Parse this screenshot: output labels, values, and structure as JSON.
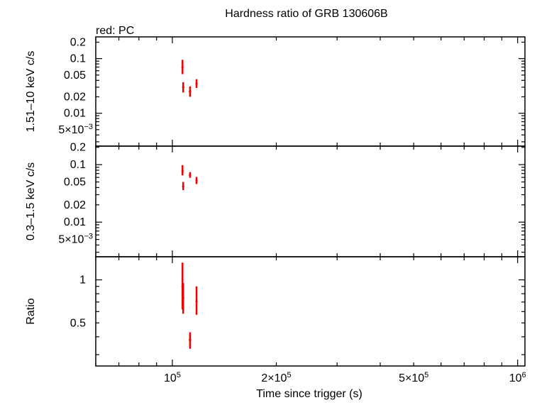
{
  "chart_data": {
    "type": "scatter",
    "title": "Hardness ratio of GRB 130606B",
    "subtitle": "red: PC",
    "xlabel": "Time since trigger (s)",
    "xscale": "log",
    "xlim": [
      60000,
      1050000
    ],
    "x_ticks": [
      {
        "value": 100000,
        "base": "10",
        "exp": "5",
        "prefix": ""
      },
      {
        "value": 200000,
        "base": "10",
        "exp": "5",
        "prefix": "2×"
      },
      {
        "value": 500000,
        "base": "10",
        "exp": "5",
        "prefix": "5×"
      },
      {
        "value": 1000000,
        "base": "10",
        "exp": "6",
        "prefix": ""
      }
    ],
    "colors": {
      "data": "#ee0000",
      "axes": "#000000"
    },
    "panels": [
      {
        "id": "hard",
        "ylabel": "1.51–10 keV c/s",
        "yscale": "log",
        "ylim": [
          0.0025,
          0.25
        ],
        "y_ticks": [
          {
            "value": 0.2,
            "label": "0.2"
          },
          {
            "value": 0.1,
            "label": "0.1"
          },
          {
            "value": 0.05,
            "label": "0.05"
          },
          {
            "value": 0.02,
            "label": "0.02"
          },
          {
            "value": 0.01,
            "label": "0.01"
          },
          {
            "value": 0.005,
            "label": "5×10",
            "exp": "−3"
          }
        ],
        "series": [
          {
            "points": [
              {
                "x": 107000,
                "y": 0.07,
                "ylow": 0.052,
                "yhigh": 0.095,
                "xlow": 106800,
                "xhigh": 107200
              },
              {
                "x": 107500,
                "y": 0.03,
                "ylow": 0.024,
                "yhigh": 0.037,
                "xlow": 106800,
                "xhigh": 108200
              },
              {
                "x": 112500,
                "y": 0.025,
                "ylow": 0.02,
                "yhigh": 0.031,
                "xlow": 111700,
                "xhigh": 113300
              },
              {
                "x": 117500,
                "y": 0.035,
                "ylow": 0.029,
                "yhigh": 0.042,
                "xlow": 116700,
                "xhigh": 118300
              }
            ]
          }
        ]
      },
      {
        "id": "soft",
        "ylabel": "0.3–1.5 keV c/s",
        "yscale": "log",
        "ylim": [
          0.0025,
          0.21
        ],
        "y_ticks": [
          {
            "value": 0.2,
            "label": "0.2"
          },
          {
            "value": 0.1,
            "label": "0.1"
          },
          {
            "value": 0.05,
            "label": "0.05"
          },
          {
            "value": 0.02,
            "label": "0.02"
          },
          {
            "value": 0.01,
            "label": "0.01"
          },
          {
            "value": 0.005,
            "label": "5×10",
            "exp": "−3"
          }
        ],
        "series": [
          {
            "points": [
              {
                "x": 107000,
                "y": 0.078,
                "ylow": 0.065,
                "yhigh": 0.098,
                "xlow": 106800,
                "xhigh": 107200
              },
              {
                "x": 107500,
                "y": 0.042,
                "ylow": 0.036,
                "yhigh": 0.05,
                "xlow": 106800,
                "xhigh": 108200
              },
              {
                "x": 112500,
                "y": 0.066,
                "ylow": 0.059,
                "yhigh": 0.074,
                "xlow": 111700,
                "xhigh": 113300
              },
              {
                "x": 117500,
                "y": 0.053,
                "ylow": 0.046,
                "yhigh": 0.061,
                "xlow": 116700,
                "xhigh": 118300
              }
            ]
          }
        ]
      },
      {
        "id": "ratio",
        "ylabel": "Ratio",
        "yscale": "log",
        "ylim": [
          0.25,
          1.45
        ],
        "y_ticks": [
          {
            "value": 1,
            "label": "1"
          },
          {
            "value": 0.5,
            "label": "0.5"
          }
        ],
        "series": [
          {
            "points": [
              {
                "x": 107000,
                "y": 0.9,
                "ylow": 0.62,
                "yhigh": 1.32,
                "xlow": 106800,
                "xhigh": 107200
              },
              {
                "x": 107500,
                "y": 0.75,
                "ylow": 0.58,
                "yhigh": 0.95,
                "xlow": 106800,
                "xhigh": 108200
              },
              {
                "x": 112500,
                "y": 0.38,
                "ylow": 0.33,
                "yhigh": 0.43,
                "xlow": 111700,
                "xhigh": 113300
              },
              {
                "x": 117500,
                "y": 0.71,
                "ylow": 0.57,
                "yhigh": 0.9,
                "xlow": 116700,
                "xhigh": 118300
              }
            ]
          }
        ]
      }
    ]
  }
}
